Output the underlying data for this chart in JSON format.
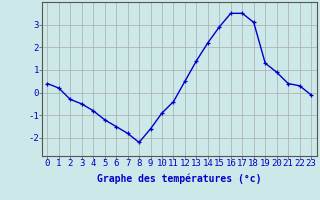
{
  "hours": [
    0,
    1,
    2,
    3,
    4,
    5,
    6,
    7,
    8,
    9,
    10,
    11,
    12,
    13,
    14,
    15,
    16,
    17,
    18,
    19,
    20,
    21,
    22,
    23
  ],
  "temps": [
    0.4,
    0.2,
    -0.3,
    -0.5,
    -0.8,
    -1.2,
    -1.5,
    -1.8,
    -2.2,
    -1.6,
    -0.9,
    -0.4,
    0.5,
    1.4,
    2.2,
    2.9,
    3.5,
    3.5,
    3.1,
    1.3,
    0.9,
    0.4,
    0.3,
    -0.1
  ],
  "line_color": "#0000cc",
  "marker": "+",
  "bg_color": "#cce8e8",
  "grid_color": "#aaaaaa",
  "xlabel": "Graphe des températures (°c)",
  "xlabel_color": "#0000cc",
  "xlabel_fontsize": 7,
  "yticks": [
    -2,
    -1,
    0,
    1,
    2,
    3
  ],
  "ylim": [
    -2.8,
    4.0
  ],
  "xlim": [
    -0.5,
    23.5
  ],
  "tick_fontsize": 6.5,
  "axis_color": "#0000cc",
  "border_color": "#555555"
}
